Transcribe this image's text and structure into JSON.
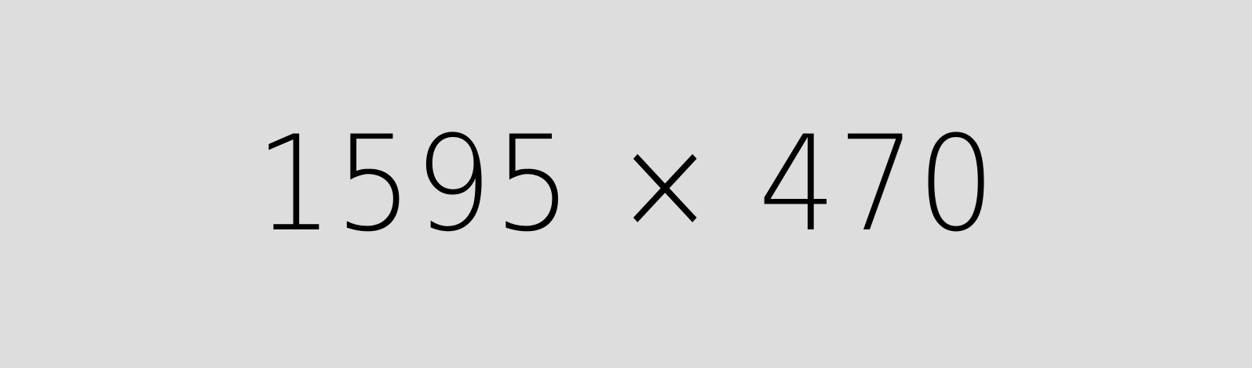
{
  "placeholder": {
    "label": "1595 × 470",
    "background_color": "#dddddd",
    "text_color": "#000000"
  }
}
